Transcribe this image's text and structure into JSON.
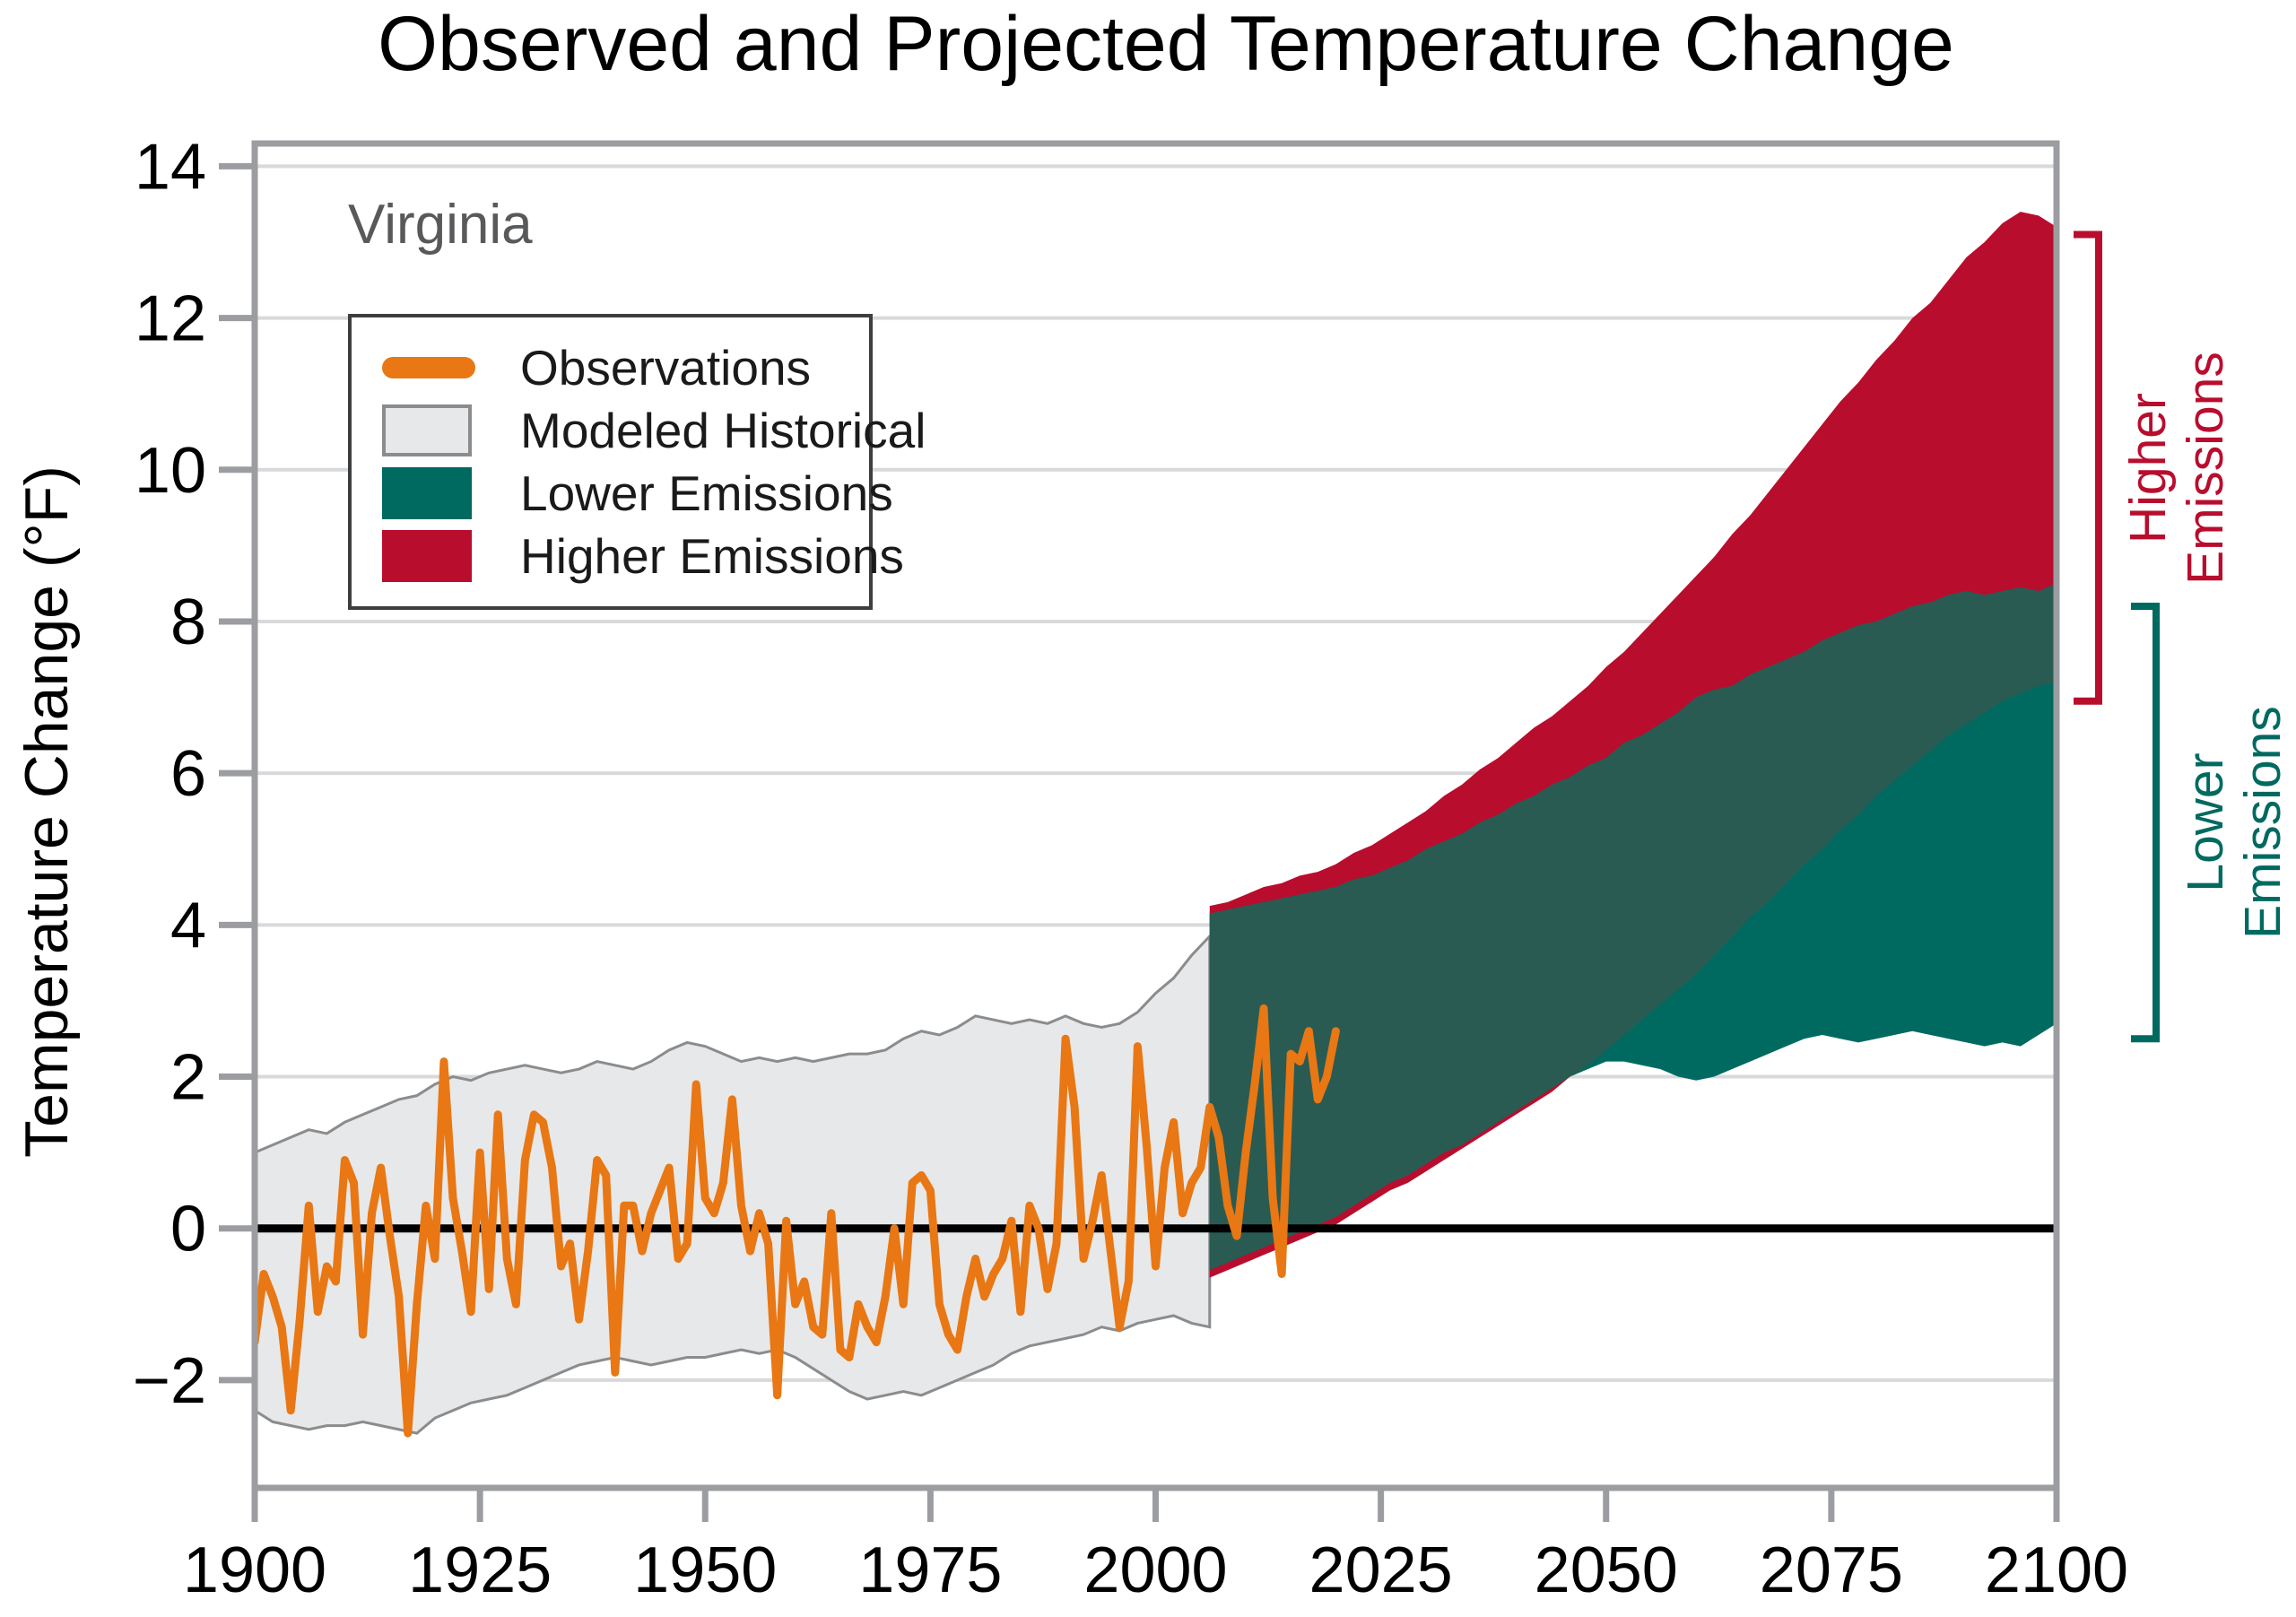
{
  "title": "Observed and Projected Temperature Change",
  "region_label": "Virginia",
  "y_axis_title": "Temperature Change (°F)",
  "legend": {
    "items": [
      {
        "label": "Observations",
        "type": "line",
        "color": "#E87714"
      },
      {
        "label": "Modeled Historical",
        "type": "box",
        "fill": "#E7E8E9",
        "border": "#8A8C8E"
      },
      {
        "label": "Lower Emissions",
        "type": "box",
        "fill": "#006A60",
        "border": "#006A60"
      },
      {
        "label": "Higher Emissions",
        "type": "box",
        "fill": "#B90D2E",
        "border": "#B90D2E"
      }
    ]
  },
  "annotations": {
    "higher": {
      "lines": [
        "Higher",
        "Emissions"
      ],
      "color": "#B90D2E",
      "range_f": [
        13.1,
        6.95
      ]
    },
    "lower": {
      "lines": [
        "Lower",
        "Emissions"
      ],
      "color": "#006A60",
      "range_f": [
        8.2,
        2.5
      ]
    }
  },
  "colors": {
    "frame": "#9B9DA0",
    "tick": "#9B9DA0",
    "gridline": "#D8D9DA",
    "zero_line": "#000000",
    "observations": "#E87714",
    "modeled_historical_fill": "#E7E8E9",
    "modeled_historical_edge": "#8A8C8E",
    "lower_emissions": "#006A60",
    "higher_emissions": "#B90D2E",
    "overlap": "#295B53",
    "text": "#000000",
    "region_text": "#58595B"
  },
  "chart_data": {
    "type": "area",
    "title": "Observed and Projected Temperature Change",
    "subtitle": "Virginia",
    "xlabel": "",
    "ylabel": "Temperature Change (°F)",
    "xlim": [
      1900,
      2100
    ],
    "ylim": [
      -3.42,
      14.3
    ],
    "grid": true,
    "legend_position": "upper-left",
    "x_ticks": [
      {
        "v": 1900,
        "label": "1900"
      },
      {
        "v": 1925,
        "label": "1925"
      },
      {
        "v": 1950,
        "label": "1950"
      },
      {
        "v": 1975,
        "label": "1975"
      },
      {
        "v": 2000,
        "label": "2000"
      },
      {
        "v": 2025,
        "label": "2025"
      },
      {
        "v": 2050,
        "label": "2050"
      },
      {
        "v": 2075,
        "label": "2075"
      },
      {
        "v": 2100,
        "label": "2100"
      }
    ],
    "y_ticks": [
      {
        "v": 14,
        "label": "14"
      },
      {
        "v": 12,
        "label": "12"
      },
      {
        "v": 10,
        "label": "10"
      },
      {
        "v": 8,
        "label": "8"
      },
      {
        "v": 6,
        "label": "6"
      },
      {
        "v": 4,
        "label": "4"
      },
      {
        "v": 2,
        "label": "2"
      },
      {
        "v": 0,
        "label": "0"
      },
      {
        "v": -2,
        "label": "−2"
      }
    ],
    "zero_line": 0,
    "overlap_color": "#295B53",
    "series": [
      {
        "name": "Modeled Historical",
        "kind": "band",
        "fill": "#E7E8E9",
        "edge": "#8A8C8E",
        "years": [
          1900,
          1902,
          1904,
          1906,
          1908,
          1910,
          1912,
          1914,
          1916,
          1918,
          1920,
          1922,
          1924,
          1926,
          1928,
          1930,
          1932,
          1934,
          1936,
          1938,
          1940,
          1942,
          1944,
          1946,
          1948,
          1950,
          1952,
          1954,
          1956,
          1958,
          1960,
          1962,
          1964,
          1966,
          1968,
          1970,
          1972,
          1974,
          1976,
          1978,
          1980,
          1982,
          1984,
          1986,
          1988,
          1990,
          1992,
          1994,
          1996,
          1998,
          2000,
          2002,
          2004,
          2006
        ],
        "upper": [
          1.0,
          1.1,
          1.2,
          1.3,
          1.25,
          1.4,
          1.5,
          1.6,
          1.7,
          1.75,
          1.9,
          2.0,
          1.95,
          2.05,
          2.1,
          2.15,
          2.1,
          2.05,
          2.1,
          2.2,
          2.15,
          2.1,
          2.2,
          2.35,
          2.45,
          2.4,
          2.3,
          2.2,
          2.25,
          2.2,
          2.25,
          2.2,
          2.25,
          2.3,
          2.3,
          2.35,
          2.5,
          2.6,
          2.55,
          2.65,
          2.8,
          2.75,
          2.7,
          2.75,
          2.7,
          2.8,
          2.7,
          2.65,
          2.7,
          2.85,
          3.1,
          3.3,
          3.6,
          3.85
        ],
        "lower": [
          -2.4,
          -2.55,
          -2.6,
          -2.65,
          -2.6,
          -2.6,
          -2.55,
          -2.6,
          -2.65,
          -2.7,
          -2.5,
          -2.4,
          -2.3,
          -2.25,
          -2.2,
          -2.1,
          -2.0,
          -1.9,
          -1.8,
          -1.75,
          -1.7,
          -1.75,
          -1.8,
          -1.75,
          -1.7,
          -1.7,
          -1.65,
          -1.6,
          -1.65,
          -1.6,
          -1.7,
          -1.85,
          -2.0,
          -2.15,
          -2.25,
          -2.2,
          -2.15,
          -2.2,
          -2.1,
          -2.0,
          -1.9,
          -1.8,
          -1.65,
          -1.55,
          -1.5,
          -1.45,
          -1.4,
          -1.3,
          -1.35,
          -1.25,
          -1.2,
          -1.15,
          -1.25,
          -1.3
        ]
      },
      {
        "name": "Higher Emissions",
        "kind": "band",
        "fill": "#B90D2E",
        "years": [
          2006,
          2008,
          2010,
          2012,
          2014,
          2016,
          2018,
          2020,
          2022,
          2024,
          2026,
          2028,
          2030,
          2032,
          2034,
          2036,
          2038,
          2040,
          2042,
          2044,
          2046,
          2048,
          2050,
          2052,
          2054,
          2056,
          2058,
          2060,
          2062,
          2064,
          2066,
          2068,
          2070,
          2072,
          2074,
          2076,
          2078,
          2080,
          2082,
          2084,
          2086,
          2088,
          2090,
          2092,
          2094,
          2096,
          2098,
          2100
        ],
        "upper": [
          4.25,
          4.3,
          4.4,
          4.5,
          4.55,
          4.65,
          4.7,
          4.8,
          4.95,
          5.05,
          5.2,
          5.35,
          5.5,
          5.7,
          5.85,
          6.05,
          6.2,
          6.4,
          6.6,
          6.75,
          6.95,
          7.15,
          7.4,
          7.6,
          7.85,
          8.1,
          8.35,
          8.6,
          8.85,
          9.15,
          9.4,
          9.7,
          10.0,
          10.3,
          10.6,
          10.9,
          11.15,
          11.45,
          11.7,
          12.0,
          12.2,
          12.5,
          12.8,
          13.0,
          13.25,
          13.4,
          13.35,
          13.2
        ],
        "lower": [
          -0.65,
          -0.55,
          -0.45,
          -0.35,
          -0.25,
          -0.15,
          -0.05,
          0.05,
          0.2,
          0.35,
          0.5,
          0.6,
          0.75,
          0.9,
          1.05,
          1.2,
          1.35,
          1.5,
          1.65,
          1.8,
          2.0,
          2.15,
          2.35,
          2.55,
          2.75,
          2.95,
          3.15,
          3.35,
          3.6,
          3.85,
          4.1,
          4.3,
          4.55,
          4.8,
          5.0,
          5.25,
          5.45,
          5.7,
          5.9,
          6.1,
          6.3,
          6.5,
          6.65,
          6.8,
          6.95,
          7.05,
          7.15,
          7.2
        ]
      },
      {
        "name": "Lower Emissions",
        "kind": "band",
        "fill": "#006A60",
        "years": [
          2006,
          2008,
          2010,
          2012,
          2014,
          2016,
          2018,
          2020,
          2022,
          2024,
          2026,
          2028,
          2030,
          2032,
          2034,
          2036,
          2038,
          2040,
          2042,
          2044,
          2046,
          2048,
          2050,
          2052,
          2054,
          2056,
          2058,
          2060,
          2062,
          2064,
          2066,
          2068,
          2070,
          2072,
          2074,
          2076,
          2078,
          2080,
          2082,
          2084,
          2086,
          2088,
          2090,
          2092,
          2094,
          2096,
          2098,
          2100
        ],
        "upper": [
          4.15,
          4.2,
          4.25,
          4.3,
          4.35,
          4.4,
          4.45,
          4.5,
          4.6,
          4.65,
          4.75,
          4.85,
          5.0,
          5.1,
          5.2,
          5.35,
          5.45,
          5.6,
          5.7,
          5.85,
          5.95,
          6.1,
          6.2,
          6.4,
          6.5,
          6.65,
          6.8,
          7.0,
          7.1,
          7.15,
          7.3,
          7.4,
          7.5,
          7.6,
          7.75,
          7.85,
          7.95,
          8.0,
          8.1,
          8.2,
          8.25,
          8.35,
          8.4,
          8.35,
          8.4,
          8.45,
          8.4,
          8.5
        ],
        "lower": [
          -0.55,
          -0.45,
          -0.35,
          -0.25,
          -0.15,
          -0.05,
          0.05,
          0.15,
          0.3,
          0.45,
          0.6,
          0.7,
          0.85,
          1.0,
          1.1,
          1.25,
          1.4,
          1.55,
          1.7,
          1.85,
          2.0,
          2.1,
          2.2,
          2.2,
          2.15,
          2.1,
          2.0,
          1.95,
          2.0,
          2.1,
          2.2,
          2.3,
          2.4,
          2.5,
          2.55,
          2.5,
          2.45,
          2.5,
          2.55,
          2.6,
          2.55,
          2.5,
          2.45,
          2.4,
          2.45,
          2.4,
          2.55,
          2.7
        ]
      },
      {
        "name": "Observations",
        "kind": "line",
        "color": "#E87714",
        "years": [
          1900,
          1901,
          1902,
          1903,
          1904,
          1905,
          1906,
          1907,
          1908,
          1909,
          1910,
          1911,
          1912,
          1913,
          1914,
          1915,
          1916,
          1917,
          1918,
          1919,
          1920,
          1921,
          1922,
          1923,
          1924,
          1925,
          1926,
          1927,
          1928,
          1929,
          1930,
          1931,
          1932,
          1933,
          1934,
          1935,
          1936,
          1937,
          1938,
          1939,
          1940,
          1941,
          1942,
          1943,
          1944,
          1945,
          1946,
          1947,
          1948,
          1949,
          1950,
          1951,
          1952,
          1953,
          1954,
          1955,
          1956,
          1957,
          1958,
          1959,
          1960,
          1961,
          1962,
          1963,
          1964,
          1965,
          1966,
          1967,
          1968,
          1969,
          1970,
          1971,
          1972,
          1973,
          1974,
          1975,
          1976,
          1977,
          1978,
          1979,
          1980,
          1981,
          1982,
          1983,
          1984,
          1985,
          1986,
          1987,
          1988,
          1989,
          1990,
          1991,
          1992,
          1993,
          1994,
          1995,
          1996,
          1997,
          1998,
          1999,
          2000,
          2001,
          2002,
          2003,
          2004,
          2005,
          2006,
          2007,
          2008,
          2009,
          2010,
          2011,
          2012,
          2013,
          2014,
          2015,
          2016,
          2017,
          2018,
          2019,
          2020
        ],
        "values": [
          -1.5,
          -0.6,
          -0.9,
          -1.3,
          -2.4,
          -1.2,
          0.3,
          -1.1,
          -0.5,
          -0.7,
          0.9,
          0.6,
          -1.4,
          0.2,
          0.8,
          -0.1,
          -0.9,
          -2.7,
          -1.0,
          0.3,
          -0.4,
          2.2,
          0.4,
          -0.3,
          -1.1,
          1.0,
          -0.8,
          1.5,
          -0.4,
          -1.0,
          0.9,
          1.5,
          1.4,
          0.8,
          -0.5,
          -0.2,
          -1.2,
          -0.3,
          0.9,
          0.7,
          -1.9,
          0.3,
          0.3,
          -0.3,
          0.2,
          0.5,
          0.8,
          -0.4,
          -0.2,
          1.9,
          0.4,
          0.2,
          0.6,
          1.7,
          0.3,
          -0.3,
          0.2,
          -0.2,
          -2.2,
          0.1,
          -1.0,
          -0.7,
          -1.3,
          -1.4,
          0.2,
          -1.6,
          -1.7,
          -1.0,
          -1.3,
          -1.5,
          -0.9,
          0.0,
          -1.0,
          0.6,
          0.7,
          0.5,
          -1.0,
          -1.4,
          -1.6,
          -0.9,
          -0.4,
          -0.9,
          -0.6,
          -0.4,
          0.1,
          -1.1,
          0.3,
          0.0,
          -0.8,
          -0.2,
          2.5,
          1.6,
          -0.4,
          0.1,
          0.7,
          -0.3,
          -1.3,
          -0.7,
          2.4,
          1.1,
          -0.5,
          0.8,
          1.4,
          0.2,
          0.6,
          0.8,
          1.6,
          1.2,
          0.3,
          -0.1,
          1.0,
          1.9,
          2.9,
          0.4,
          -0.6,
          2.3,
          2.2,
          2.6,
          1.7,
          2.0,
          2.6
        ]
      }
    ]
  }
}
